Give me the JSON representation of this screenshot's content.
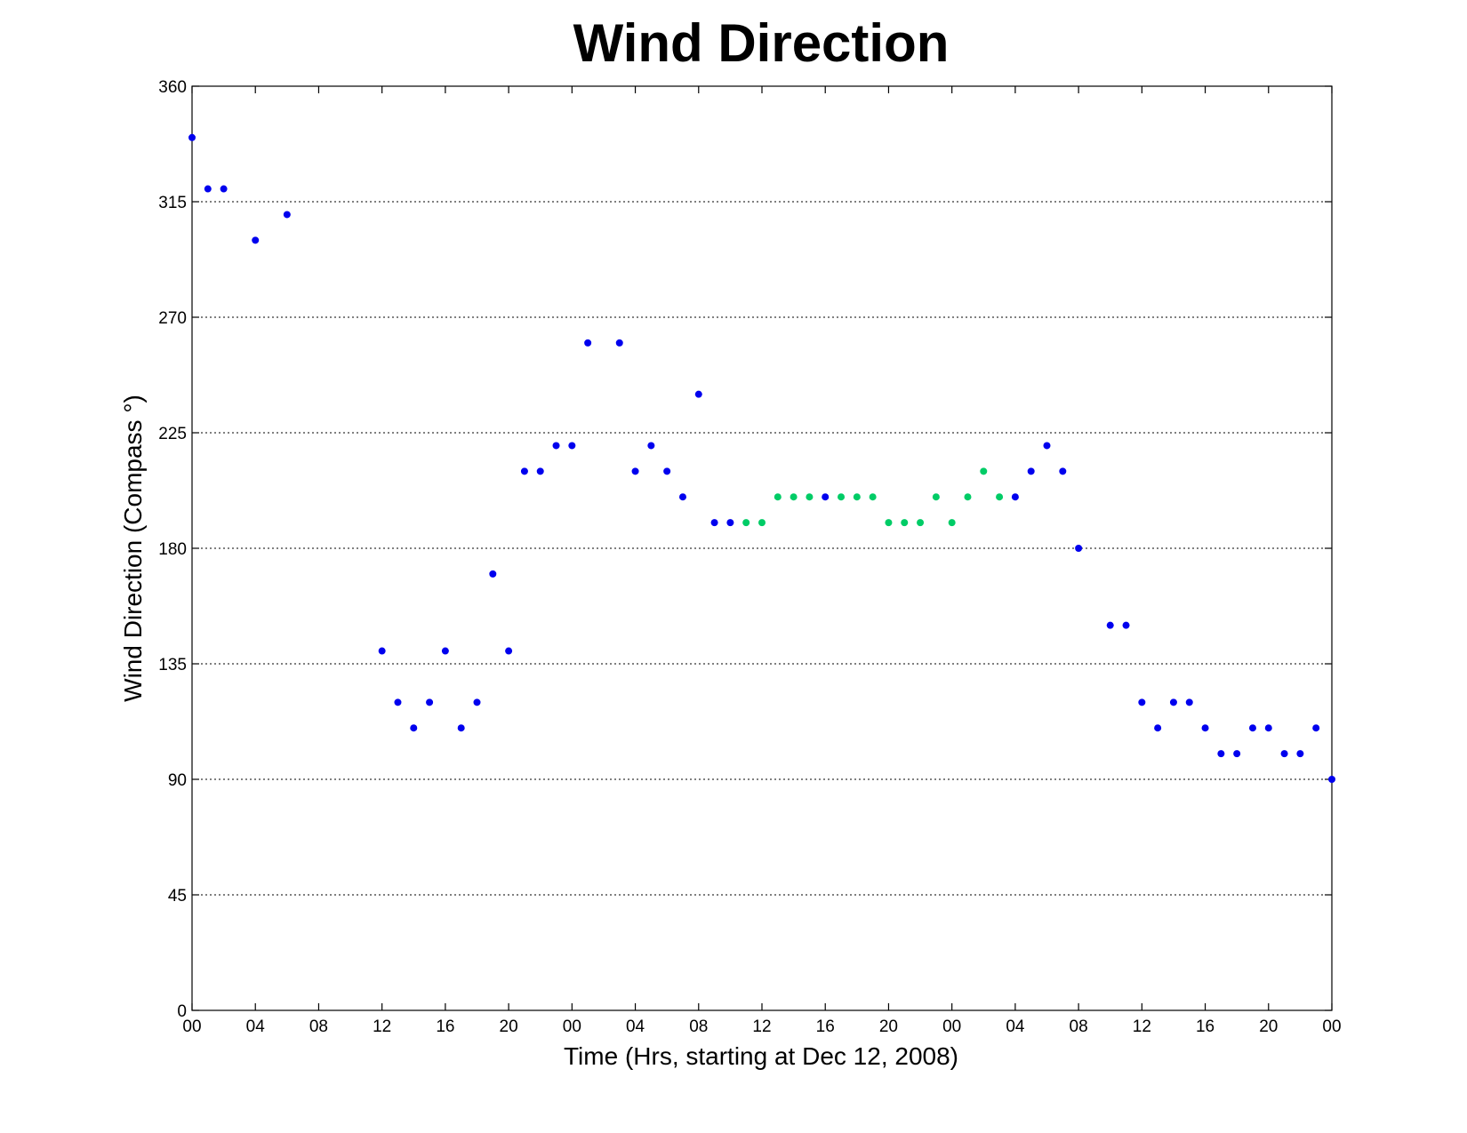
{
  "chart_data": {
    "type": "scatter",
    "title": "Wind Direction",
    "xlabel": "Time (Hrs, starting at Dec 12, 2008)",
    "ylabel": "Wind Direction (Compass °)",
    "xlim": [
      0,
      72
    ],
    "ylim": [
      0,
      360
    ],
    "x_ticks": [
      0,
      4,
      8,
      12,
      16,
      20,
      24,
      28,
      32,
      36,
      40,
      44,
      48,
      52,
      56,
      60,
      64,
      68,
      72
    ],
    "x_tick_labels": [
      "00",
      "04",
      "08",
      "12",
      "16",
      "20",
      "00",
      "04",
      "08",
      "12",
      "16",
      "20",
      "00",
      "04",
      "08",
      "12",
      "16",
      "20",
      "00"
    ],
    "y_ticks": [
      0,
      45,
      90,
      135,
      180,
      225,
      270,
      315,
      360
    ],
    "y_tick_labels": [
      "0",
      "45",
      "90",
      "135",
      "180",
      "225",
      "270",
      "315",
      "360"
    ],
    "grid": "horizontal dotted",
    "legend": "none",
    "series": [
      {
        "color": "#0000ee",
        "x": [
          0,
          1,
          2,
          4,
          6,
          12,
          13,
          14,
          15,
          16,
          17,
          18,
          19,
          20,
          21,
          22,
          23,
          24,
          25,
          27,
          28,
          29,
          30,
          31,
          32,
          33,
          34,
          40,
          52,
          53,
          54,
          55,
          56,
          58,
          59,
          60,
          61,
          62,
          63,
          64,
          65,
          66,
          67,
          68,
          69,
          70,
          71,
          72
        ],
        "y": [
          340,
          320,
          320,
          300,
          310,
          140,
          120,
          110,
          120,
          140,
          110,
          120,
          170,
          140,
          210,
          210,
          220,
          220,
          260,
          260,
          210,
          220,
          210,
          200,
          240,
          190,
          190,
          200,
          200,
          210,
          220,
          210,
          180,
          150,
          150,
          120,
          110,
          120,
          120,
          110,
          100,
          100,
          110,
          110,
          100,
          100,
          110,
          90
        ]
      },
      {
        "color": "#00cc66",
        "x": [
          35,
          36,
          37,
          38,
          39,
          41,
          42,
          43,
          44,
          45,
          46,
          47,
          48,
          49,
          50,
          51
        ],
        "y": [
          190,
          190,
          200,
          200,
          200,
          200,
          200,
          200,
          190,
          190,
          190,
          200,
          190,
          200,
          210,
          200
        ]
      }
    ]
  }
}
